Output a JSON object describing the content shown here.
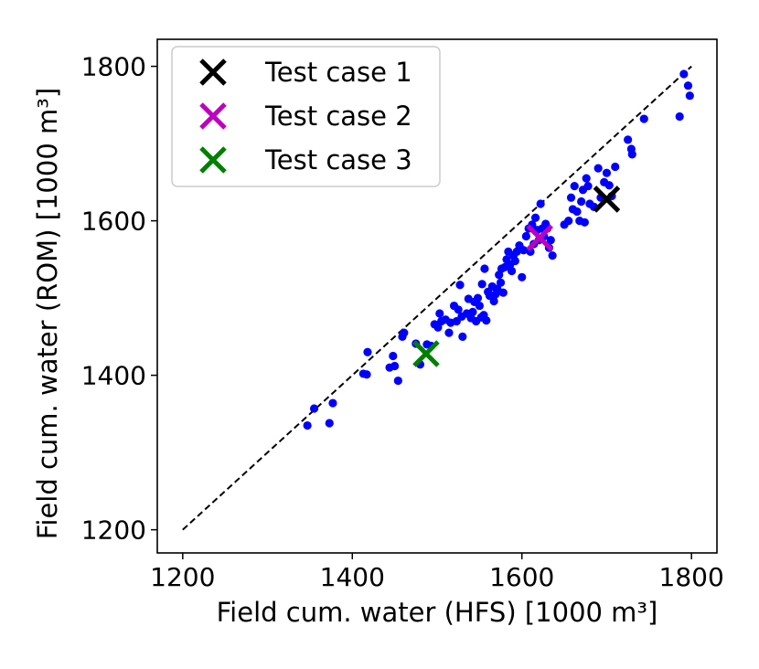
{
  "chart_data": {
    "type": "scatter",
    "xlabel": "Field cum. water (HFS) [1000 m³]",
    "ylabel": "Field cum. water (ROM) [1000 m³]",
    "xlim": [
      1170,
      1830
    ],
    "ylim": [
      1170,
      1835
    ],
    "xticks": [
      "1200",
      "1400",
      "1600",
      "1800"
    ],
    "yticks": [
      "1200",
      "1400",
      "1600",
      "1800"
    ],
    "grid": false,
    "legend_position": "top-left",
    "reference_line": {
      "style": "dashed",
      "color": "#000000",
      "from": [
        1200,
        1200
      ],
      "to": [
        1800,
        1800
      ]
    },
    "series": [
      {
        "color": "#0000ff",
        "marker": "circle",
        "points": [
          [
            1347,
            1335
          ],
          [
            1355,
            1357
          ],
          [
            1373,
            1338
          ],
          [
            1377,
            1364
          ],
          [
            1413,
            1402
          ],
          [
            1417,
            1401
          ],
          [
            1418,
            1430
          ],
          [
            1444,
            1410
          ],
          [
            1448,
            1425
          ],
          [
            1450,
            1412
          ],
          [
            1454,
            1393
          ],
          [
            1459,
            1450
          ],
          [
            1461,
            1455
          ],
          [
            1475,
            1441
          ],
          [
            1480,
            1414
          ],
          [
            1488,
            1440
          ],
          [
            1493,
            1438
          ],
          [
            1497,
            1466
          ],
          [
            1501,
            1462
          ],
          [
            1503,
            1480
          ],
          [
            1505,
            1470
          ],
          [
            1510,
            1472
          ],
          [
            1514,
            1455
          ],
          [
            1516,
            1468
          ],
          [
            1520,
            1490
          ],
          [
            1523,
            1470
          ],
          [
            1525,
            1485
          ],
          [
            1527,
            1517
          ],
          [
            1529,
            1476
          ],
          [
            1530,
            1450
          ],
          [
            1535,
            1480
          ],
          [
            1537,
            1499
          ],
          [
            1540,
            1474
          ],
          [
            1542,
            1482
          ],
          [
            1544,
            1495
          ],
          [
            1546,
            1470
          ],
          [
            1548,
            1500
          ],
          [
            1550,
            1490
          ],
          [
            1552,
            1475
          ],
          [
            1553,
            1518
          ],
          [
            1555,
            1478
          ],
          [
            1556,
            1538
          ],
          [
            1558,
            1471
          ],
          [
            1560,
            1508
          ],
          [
            1562,
            1503
          ],
          [
            1565,
            1515
          ],
          [
            1567,
            1496
          ],
          [
            1569,
            1505
          ],
          [
            1571,
            1512
          ],
          [
            1573,
            1530
          ],
          [
            1575,
            1520
          ],
          [
            1576,
            1538
          ],
          [
            1578,
            1507
          ],
          [
            1580,
            1540
          ],
          [
            1582,
            1550
          ],
          [
            1584,
            1560
          ],
          [
            1586,
            1543
          ],
          [
            1588,
            1535
          ],
          [
            1590,
            1555
          ],
          [
            1592,
            1548
          ],
          [
            1594,
            1560
          ],
          [
            1597,
            1568
          ],
          [
            1600,
            1527
          ],
          [
            1602,
            1562
          ],
          [
            1605,
            1580
          ],
          [
            1608,
            1590
          ],
          [
            1610,
            1560
          ],
          [
            1612,
            1595
          ],
          [
            1614,
            1570
          ],
          [
            1616,
            1604
          ],
          [
            1618,
            1588
          ],
          [
            1620,
            1575
          ],
          [
            1622,
            1622
          ],
          [
            1624,
            1590
          ],
          [
            1626,
            1580
          ],
          [
            1628,
            1596
          ],
          [
            1630,
            1590
          ],
          [
            1632,
            1565
          ],
          [
            1634,
            1575
          ],
          [
            1636,
            1555
          ],
          [
            1650,
            1595
          ],
          [
            1655,
            1600
          ],
          [
            1658,
            1630
          ],
          [
            1660,
            1615
          ],
          [
            1662,
            1645
          ],
          [
            1665,
            1612
          ],
          [
            1668,
            1600
          ],
          [
            1670,
            1625
          ],
          [
            1672,
            1640
          ],
          [
            1674,
            1598
          ],
          [
            1676,
            1655
          ],
          [
            1678,
            1645
          ],
          [
            1680,
            1622
          ],
          [
            1685,
            1618
          ],
          [
            1690,
            1668
          ],
          [
            1693,
            1630
          ],
          [
            1697,
            1650
          ],
          [
            1700,
            1662
          ],
          [
            1703,
            1646
          ],
          [
            1706,
            1632
          ],
          [
            1710,
            1670
          ],
          [
            1725,
            1705
          ],
          [
            1729,
            1693
          ],
          [
            1730,
            1686
          ],
          [
            1744,
            1732
          ],
          [
            1786,
            1735
          ],
          [
            1791,
            1790
          ],
          [
            1796,
            1775
          ],
          [
            1798,
            1762
          ]
        ]
      }
    ],
    "highlights": [
      {
        "name": "Test case 1",
        "color": "#000000",
        "x": 1700,
        "y": 1628
      },
      {
        "name": "Test case 2",
        "color": "#bf00bf",
        "x": 1621,
        "y": 1578
      },
      {
        "name": "Test case 3",
        "color": "#008000",
        "x": 1487,
        "y": 1428
      }
    ]
  }
}
